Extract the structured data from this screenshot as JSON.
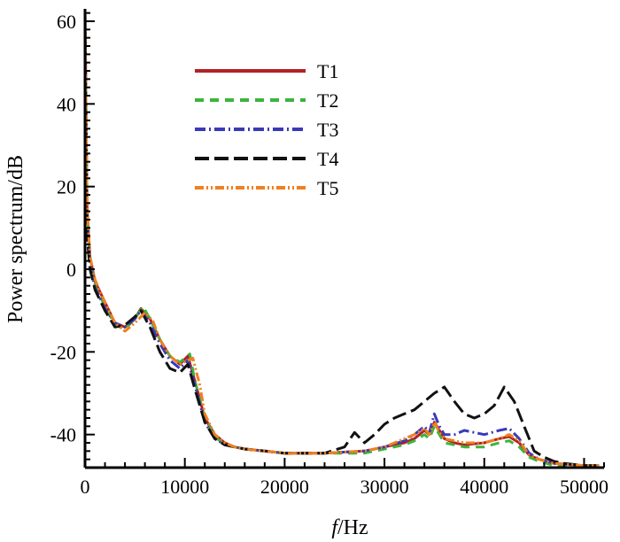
{
  "chart_data": {
    "type": "line",
    "title": "",
    "xlabel_italic": "f",
    "xlabel_rest": "/Hz",
    "ylabel": "Power spectrum/dB",
    "xlim": [
      0,
      52000
    ],
    "ylim": [
      -48,
      63
    ],
    "xticks": [
      0,
      10000,
      20000,
      30000,
      40000,
      50000
    ],
    "yticks": [
      -40,
      -20,
      0,
      20,
      40,
      60
    ],
    "grid": false,
    "legend_position": "top-center",
    "series": [
      {
        "name": "T1",
        "color": "#b22222",
        "dash": "solid",
        "x": [
          0,
          200,
          500,
          1000,
          2000,
          3000,
          4000,
          5000,
          5600,
          6500,
          7500,
          8500,
          9500,
          10300,
          11000,
          12000,
          13000,
          14000,
          15000,
          16000,
          18000,
          20000,
          24000,
          28000,
          30000,
          32000,
          33000,
          34000,
          34500,
          35000,
          35500,
          36000,
          37000,
          38000,
          40000,
          41500,
          42500,
          43500,
          44500,
          45500,
          47000,
          50000,
          51500
        ],
        "y": [
          62,
          15,
          3,
          -3,
          -8,
          -13,
          -14,
          -12,
          -9.5,
          -12,
          -17,
          -21,
          -23,
          -21,
          -27,
          -36,
          -40,
          -42,
          -43,
          -43.5,
          -44,
          -44.5,
          -44.5,
          -44,
          -43,
          -42,
          -41,
          -39,
          -40,
          -37,
          -39,
          -41,
          -42,
          -42.5,
          -42,
          -41,
          -40.5,
          -42,
          -45,
          -46,
          -47,
          -47.5,
          -47.5
        ]
      },
      {
        "name": "T2",
        "color": "#3cb43c",
        "dash": "10,7",
        "x": [
          0,
          200,
          500,
          1000,
          2000,
          3000,
          4000,
          5000,
          5800,
          6500,
          7500,
          8500,
          9500,
          10500,
          11000,
          12000,
          13000,
          14000,
          15000,
          16000,
          18000,
          20000,
          24000,
          28000,
          30000,
          32000,
          33000,
          34000,
          34500,
          35000,
          35500,
          36000,
          37000,
          38000,
          40000,
          41500,
          42500,
          43500,
          44500,
          45500,
          47000,
          50000,
          51500
        ],
        "y": [
          62,
          14,
          2,
          -4,
          -9,
          -13.5,
          -14.5,
          -12,
          -9,
          -12,
          -17,
          -21,
          -22.5,
          -20.5,
          -27,
          -36,
          -40.5,
          -42.5,
          -43,
          -43.5,
          -44,
          -44.5,
          -44.5,
          -44.5,
          -43.5,
          -42.5,
          -41.5,
          -40,
          -41,
          -38,
          -40,
          -42,
          -42.5,
          -43,
          -43,
          -42,
          -41.5,
          -43,
          -45.5,
          -46.5,
          -47.5,
          -47.5,
          -47.5
        ]
      },
      {
        "name": "T3",
        "color": "#3a3ab8",
        "dash": "12,4,2,4",
        "x": [
          0,
          200,
          500,
          1000,
          2000,
          3000,
          4000,
          5000,
          5600,
          6500,
          7500,
          8500,
          9500,
          10300,
          11000,
          12000,
          13000,
          14000,
          15000,
          16000,
          18000,
          20000,
          24000,
          28000,
          30000,
          32000,
          33000,
          34000,
          34500,
          35000,
          35500,
          36000,
          37000,
          38000,
          40000,
          41500,
          42500,
          43500,
          44500,
          45500,
          47000,
          50000,
          51500
        ],
        "y": [
          62,
          13,
          1,
          -4.5,
          -9.5,
          -13,
          -14,
          -12,
          -10,
          -13,
          -18,
          -22,
          -24,
          -22,
          -28,
          -37,
          -41,
          -42.5,
          -43,
          -43.5,
          -44,
          -44.5,
          -44.5,
          -44,
          -43,
          -41.5,
          -40,
          -38,
          -39.5,
          -35,
          -38,
          -40,
          -40,
          -39,
          -40,
          -39,
          -38.5,
          -41,
          -44.5,
          -46,
          -47,
          -47.5,
          -47.5
        ]
      },
      {
        "name": "T4",
        "color": "#111111",
        "dash": "16,6",
        "x": [
          0,
          200,
          500,
          1000,
          2000,
          3000,
          4000,
          5000,
          5600,
          6500,
          7500,
          8500,
          9500,
          10300,
          11000,
          12000,
          13000,
          14000,
          15000,
          16000,
          18000,
          20000,
          24000,
          26000,
          27000,
          28000,
          29000,
          30000,
          31000,
          32000,
          33000,
          34000,
          35000,
          36000,
          37000,
          38000,
          39000,
          40000,
          41000,
          42000,
          43000,
          44000,
          45000,
          46000,
          47000,
          48000,
          50000,
          51500
        ],
        "y": [
          62,
          8,
          0,
          -5,
          -10,
          -14,
          -13.5,
          -11.5,
          -10,
          -14,
          -20,
          -24,
          -25,
          -23,
          -29,
          -37,
          -41,
          -42.5,
          -43,
          -43.5,
          -44,
          -44.5,
          -44.5,
          -43,
          -39.5,
          -42,
          -40,
          -37.5,
          -36,
          -35,
          -34,
          -32,
          -30,
          -28.5,
          -32,
          -35,
          -36,
          -35,
          -33,
          -28.5,
          -32,
          -38,
          -44,
          -45.5,
          -46.5,
          -47,
          -47.5,
          -47.5
        ]
      },
      {
        "name": "T5",
        "color": "#f08020",
        "dash": "10,3,2,3,2,3",
        "x": [
          0,
          200,
          500,
          1000,
          2000,
          3000,
          4000,
          5000,
          6000,
          6800,
          7500,
          8500,
          9500,
          10800,
          11500,
          12000,
          13000,
          14000,
          15000,
          16000,
          18000,
          20000,
          24000,
          28000,
          30000,
          32000,
          33000,
          34000,
          34500,
          35000,
          35500,
          36000,
          37000,
          38000,
          40000,
          41500,
          42500,
          43500,
          44500,
          45500,
          47000,
          50000,
          51500
        ],
        "y": [
          62,
          15,
          3,
          -2.5,
          -8,
          -13,
          -15,
          -13,
          -10.5,
          -12.5,
          -17,
          -21,
          -23,
          -21.5,
          -28,
          -35,
          -40,
          -42,
          -43,
          -43.5,
          -44,
          -44.5,
          -44.5,
          -44,
          -43,
          -41,
          -40,
          -38.5,
          -40,
          -37,
          -39.5,
          -41,
          -41.5,
          -42,
          -42,
          -41,
          -40,
          -41.5,
          -45,
          -46,
          -47,
          -47.5,
          -47.5
        ]
      }
    ]
  }
}
